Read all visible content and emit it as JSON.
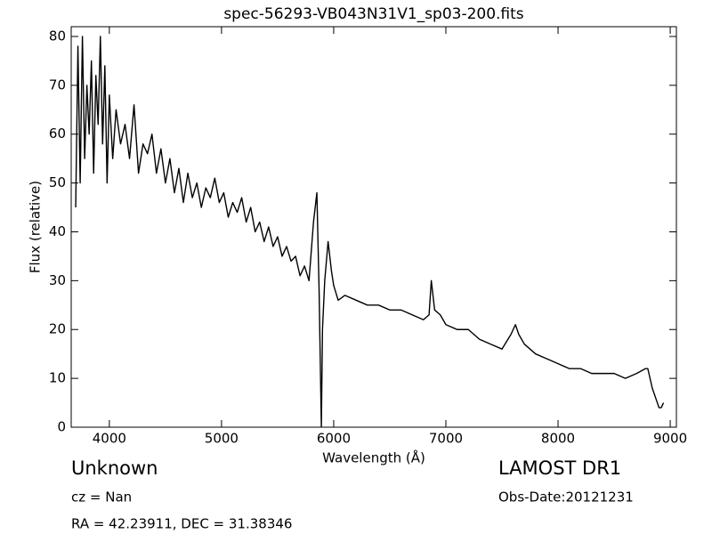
{
  "chart_data": {
    "type": "line",
    "title": "spec-56293-VB043N31V1_sp03-200.fits",
    "xlabel": "Wavelength (Å)",
    "ylabel": "Flux (relative)",
    "color": "#000000",
    "x": [
      3700,
      3720,
      3740,
      3760,
      3780,
      3800,
      3820,
      3840,
      3860,
      3880,
      3900,
      3920,
      3940,
      3960,
      3980,
      4000,
      4030,
      4060,
      4100,
      4140,
      4180,
      4220,
      4260,
      4300,
      4340,
      4380,
      4420,
      4460,
      4500,
      4540,
      4580,
      4620,
      4660,
      4700,
      4740,
      4780,
      4820,
      4860,
      4900,
      4940,
      4980,
      5020,
      5060,
      5100,
      5140,
      5180,
      5220,
      5260,
      5300,
      5340,
      5380,
      5420,
      5460,
      5500,
      5540,
      5580,
      5620,
      5660,
      5700,
      5740,
      5780,
      5820,
      5850,
      5870,
      5890,
      5900,
      5920,
      5950,
      5980,
      6000,
      6040,
      6100,
      6200,
      6300,
      6400,
      6500,
      6600,
      6700,
      6800,
      6850,
      6870,
      6900,
      6950,
      7000,
      7100,
      7200,
      7300,
      7400,
      7500,
      7580,
      7620,
      7650,
      7700,
      7800,
      7900,
      8000,
      8100,
      8200,
      8300,
      8400,
      8500,
      8600,
      8700,
      8780,
      8800,
      8840,
      8870,
      8900,
      8920,
      8940
    ],
    "values": [
      45,
      78,
      50,
      80,
      55,
      70,
      60,
      75,
      52,
      72,
      62,
      80,
      58,
      74,
      50,
      68,
      55,
      65,
      58,
      62,
      55,
      66,
      52,
      58,
      56,
      60,
      52,
      57,
      50,
      55,
      48,
      53,
      46,
      52,
      47,
      50,
      45,
      49,
      47,
      51,
      46,
      48,
      43,
      46,
      44,
      47,
      42,
      45,
      40,
      42,
      38,
      41,
      37,
      39,
      35,
      37,
      34,
      35,
      31,
      33,
      30,
      42,
      48,
      28,
      0,
      20,
      30,
      38,
      32,
      29,
      26,
      27,
      26,
      25,
      25,
      24,
      24,
      23,
      22,
      23,
      30,
      24,
      23,
      21,
      20,
      20,
      18,
      17,
      16,
      19,
      21,
      19,
      17,
      15,
      14,
      13,
      12,
      12,
      11,
      11,
      11,
      10,
      11,
      12,
      12,
      8,
      6,
      4,
      4,
      5
    ],
    "xlim": [
      3660,
      9055
    ],
    "ylim": [
      0,
      82
    ],
    "xticks": [
      4000,
      5000,
      6000,
      7000,
      8000,
      9000
    ],
    "yticks": [
      0,
      10,
      20,
      30,
      40,
      50,
      60,
      70,
      80
    ],
    "annotations": {
      "object": "Unknown",
      "cz": "cz = Nan",
      "coords": "RA = 42.23911, DEC = 31.38346",
      "survey": "LAMOST DR1",
      "obs_date": "Obs-Date:20121231"
    }
  }
}
